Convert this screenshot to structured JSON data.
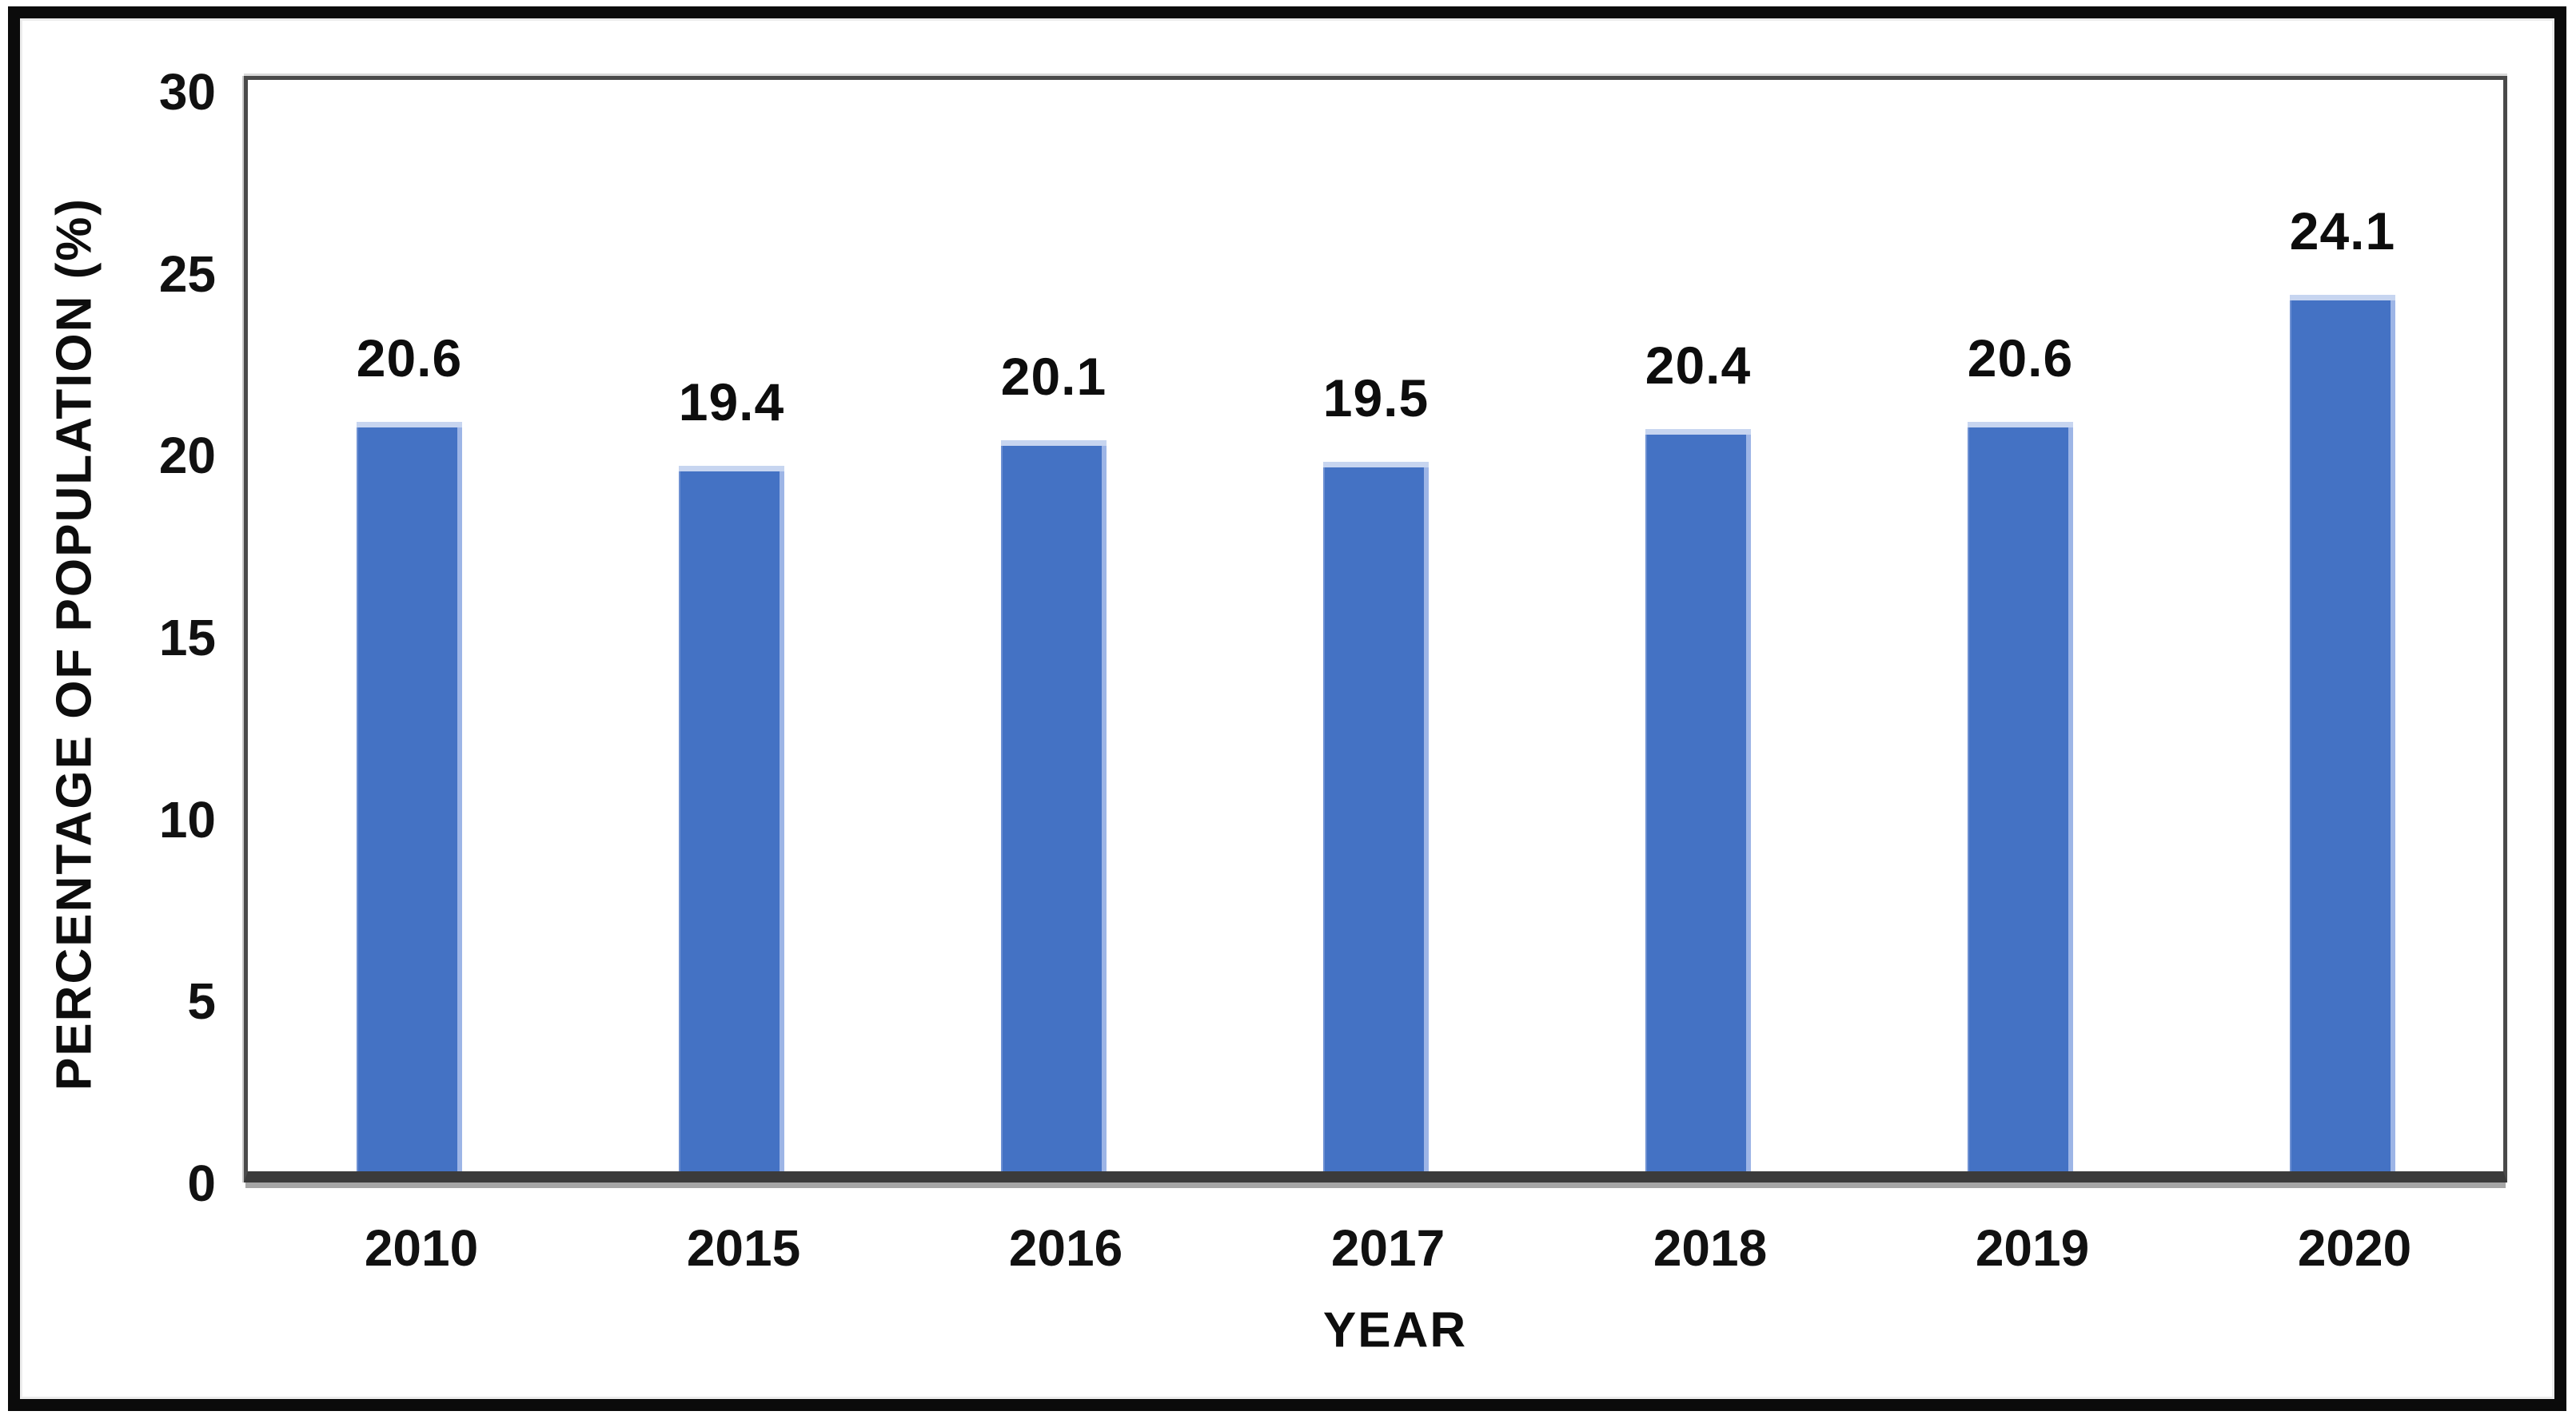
{
  "chart_data": {
    "type": "bar",
    "title": "",
    "categories": [
      "2010",
      "2015",
      "2016",
      "2017",
      "2018",
      "2019",
      "2020"
    ],
    "values": [
      20.6,
      19.4,
      20.1,
      19.5,
      20.4,
      20.6,
      24.1
    ],
    "data_labels": [
      "20.6",
      "19.4",
      "20.1",
      "19.5",
      "20.4",
      "20.6",
      "24.1"
    ],
    "xlabel": "YEAR",
    "ylabel": "PERCENTAGE OF POPULATION (%)",
    "ylim": [
      0,
      30
    ],
    "yticks": [
      "30",
      "25",
      "20",
      "15",
      "10",
      "5",
      "0"
    ],
    "grid": "off",
    "legend": "none",
    "colors": {
      "bar_fill": "#4472C4",
      "bar_top_highlight": "#c7d5f0",
      "bar_right_highlight": "#9db5e6",
      "axis_line": "#4a4a4a",
      "text": "#111111",
      "frame": "#0b0b0b",
      "background": "#ffffff"
    }
  }
}
